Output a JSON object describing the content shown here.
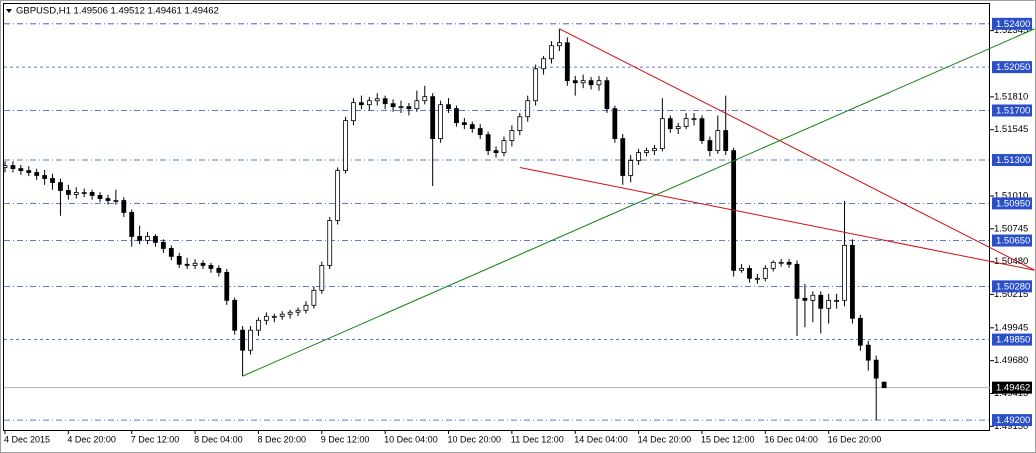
{
  "chart_data": {
    "type": "candlestick",
    "title": "GBPUSD,H1  1.49506 1.49512 1.49461 1.49462",
    "categories": [
      "4 Dec 2015",
      null,
      null,
      null,
      null,
      null,
      null,
      null,
      "4 Dec 20:00",
      null,
      null,
      null,
      null,
      null,
      null,
      null,
      "7 Dec 12:00",
      null,
      null,
      null,
      null,
      null,
      null,
      null,
      "8 Dec 04:00",
      null,
      null,
      null,
      null,
      null,
      null,
      null,
      "8 Dec 20:00",
      null,
      null,
      null,
      null,
      null,
      null,
      null,
      "9 Dec 12:00",
      null,
      null,
      null,
      null,
      null,
      null,
      null,
      "10 Dec 04:00",
      null,
      null,
      null,
      null,
      null,
      null,
      null,
      "10 Dec 20:00",
      null,
      null,
      null,
      null,
      null,
      null,
      null,
      "11 Dec 12:00",
      null,
      null,
      null,
      null,
      null,
      null,
      null,
      "14 Dec 04:00",
      null,
      null,
      null,
      null,
      null,
      null,
      null,
      "14 Dec 20:00",
      null,
      null,
      null,
      null,
      null,
      null,
      null,
      "15 Dec 12:00",
      null,
      null,
      null,
      null,
      null,
      null,
      null,
      "16 Dec 04:00",
      null,
      null,
      null,
      null,
      null,
      null,
      null,
      "16 Dec 20:00",
      null,
      null,
      null,
      null,
      null,
      null,
      null
    ],
    "ohlc": [
      [
        1.5124,
        1.5129,
        1.512,
        1.51255
      ],
      [
        1.51255,
        1.5129,
        1.512,
        1.51231
      ],
      [
        1.51231,
        1.5126,
        1.5118,
        1.51215
      ],
      [
        1.51215,
        1.5125,
        1.5117,
        1.51199
      ],
      [
        1.51199,
        1.5123,
        1.5114,
        1.51175
      ],
      [
        1.51175,
        1.5122,
        1.511,
        1.51151
      ],
      [
        1.51151,
        1.5119,
        1.5106,
        1.51118
      ],
      [
        1.51118,
        1.5115,
        1.5085,
        1.51054
      ],
      [
        1.51054,
        1.511,
        1.5098,
        1.51022
      ],
      [
        1.51022,
        1.5108,
        1.5099,
        1.51038
      ],
      [
        1.51038,
        1.5107,
        1.51,
        1.51038
      ],
      [
        1.51038,
        1.5106,
        1.5098,
        1.51014
      ],
      [
        1.51014,
        1.5104,
        1.5096,
        1.50989
      ],
      [
        1.50989,
        1.5102,
        1.5094,
        1.50973
      ],
      [
        1.50973,
        1.5106,
        1.5094,
        1.50973
      ],
      [
        1.50973,
        1.51,
        1.5084,
        1.50877
      ],
      [
        1.50877,
        1.509,
        1.506,
        1.50683
      ],
      [
        1.50683,
        1.5077,
        1.5062,
        1.50651
      ],
      [
        1.50651,
        1.5072,
        1.5062,
        1.50683
      ],
      [
        1.50683,
        1.507,
        1.506,
        1.50635
      ],
      [
        1.50635,
        1.5066,
        1.5055,
        1.50586
      ],
      [
        1.50586,
        1.5061,
        1.5049,
        1.50522
      ],
      [
        1.50522,
        1.5055,
        1.5043,
        1.50458
      ],
      [
        1.50458,
        1.5051,
        1.5042,
        1.50449
      ],
      [
        1.50449,
        1.505,
        1.5042,
        1.50466
      ],
      [
        1.50466,
        1.5049,
        1.5042,
        1.50449
      ],
      [
        1.50449,
        1.5047,
        1.5039,
        1.50425
      ],
      [
        1.50425,
        1.5045,
        1.5036,
        1.50393
      ],
      [
        1.50393,
        1.5042,
        1.5013,
        1.50167
      ],
      [
        1.50167,
        1.5019,
        1.4989,
        1.49926
      ],
      [
        1.49926,
        1.4996,
        1.49555,
        1.49764
      ],
      [
        1.49764,
        1.4996,
        1.4973,
        1.49926
      ],
      [
        1.49926,
        1.5003,
        1.4988,
        1.50006
      ],
      [
        1.50006,
        1.5007,
        1.4997,
        1.50038
      ],
      [
        1.50038,
        1.5006,
        1.4999,
        1.50038
      ],
      [
        1.50038,
        1.5008,
        1.5001,
        1.50055
      ],
      [
        1.50055,
        1.5009,
        1.5002,
        1.50071
      ],
      [
        1.50071,
        1.5011,
        1.5004,
        1.50087
      ],
      [
        1.50087,
        1.5016,
        1.5006,
        1.50127
      ],
      [
        1.50127,
        1.5028,
        1.501,
        1.50248
      ],
      [
        1.50248,
        1.5048,
        1.5022,
        1.50449
      ],
      [
        1.50449,
        1.5084,
        1.5042,
        1.50812
      ],
      [
        1.50812,
        1.5124,
        1.5078,
        1.51215
      ],
      [
        1.51215,
        1.5165,
        1.5119,
        1.51618
      ],
      [
        1.51618,
        1.518,
        1.5158,
        1.51763
      ],
      [
        1.51763,
        1.5182,
        1.5171,
        1.51747
      ],
      [
        1.51747,
        1.5181,
        1.517,
        1.51779
      ],
      [
        1.51779,
        1.5184,
        1.5174,
        1.51795
      ],
      [
        1.51795,
        1.5182,
        1.5171,
        1.51755
      ],
      [
        1.51755,
        1.5179,
        1.5169,
        1.51731
      ],
      [
        1.51731,
        1.5178,
        1.5168,
        1.51731
      ],
      [
        1.51731,
        1.5176,
        1.5166,
        1.51715
      ],
      [
        1.51715,
        1.5186,
        1.5169,
        1.51779
      ],
      [
        1.51779,
        1.519,
        1.5175,
        1.51812
      ],
      [
        1.51812,
        1.5184,
        1.5109,
        1.51473
      ],
      [
        1.51473,
        1.5178,
        1.5144,
        1.51747
      ],
      [
        1.51747,
        1.518,
        1.5168,
        1.51715
      ],
      [
        1.51715,
        1.5174,
        1.5157,
        1.51602
      ],
      [
        1.51602,
        1.5164,
        1.5155,
        1.51586
      ],
      [
        1.51586,
        1.5161,
        1.5152,
        1.51554
      ],
      [
        1.51554,
        1.5159,
        1.5147,
        1.51505
      ],
      [
        1.51505,
        1.5153,
        1.5134,
        1.51376
      ],
      [
        1.51376,
        1.5141,
        1.5132,
        1.5136
      ],
      [
        1.5136,
        1.5149,
        1.5133,
        1.51457
      ],
      [
        1.51457,
        1.5158,
        1.5141,
        1.51538
      ],
      [
        1.51538,
        1.5168,
        1.515,
        1.5165
      ],
      [
        1.5165,
        1.5182,
        1.5161,
        1.51779
      ],
      [
        1.51779,
        1.5207,
        1.5174,
        1.52037
      ],
      [
        1.52037,
        1.5214,
        1.5199,
        1.52118
      ],
      [
        1.52118,
        1.5226,
        1.5208,
        1.52223
      ],
      [
        1.52223,
        1.5236,
        1.5218,
        1.52247
      ],
      [
        1.52247,
        1.5229,
        1.519,
        1.51941
      ],
      [
        1.51941,
        1.5198,
        1.5182,
        1.51924
      ],
      [
        1.51924,
        1.5199,
        1.5188,
        1.51941
      ],
      [
        1.51941,
        1.5197,
        1.5187,
        1.51908
      ],
      [
        1.51908,
        1.5198,
        1.5186,
        1.51941
      ],
      [
        1.51941,
        1.5197,
        1.5168,
        1.51715
      ],
      [
        1.51715,
        1.5174,
        1.5144,
        1.51473
      ],
      [
        1.51473,
        1.5151,
        1.511,
        1.51175
      ],
      [
        1.51175,
        1.5134,
        1.5112,
        1.51296
      ],
      [
        1.51296,
        1.5139,
        1.5126,
        1.5136
      ],
      [
        1.5136,
        1.514,
        1.5133,
        1.51376
      ],
      [
        1.51376,
        1.5142,
        1.5134,
        1.51392
      ],
      [
        1.51392,
        1.518,
        1.5137,
        1.51634
      ],
      [
        1.51634,
        1.5166,
        1.5152,
        1.51554
      ],
      [
        1.51554,
        1.516,
        1.5151,
        1.5157
      ],
      [
        1.5157,
        1.5168,
        1.5155,
        1.51634
      ],
      [
        1.51634,
        1.5168,
        1.5158,
        1.51634
      ],
      [
        1.51634,
        1.5166,
        1.5143,
        1.51457
      ],
      [
        1.51457,
        1.5149,
        1.5133,
        1.51376
      ],
      [
        1.51376,
        1.5166,
        1.5135,
        1.51538
      ],
      [
        1.51538,
        1.5182,
        1.5134,
        1.51376
      ],
      [
        1.51376,
        1.514,
        1.5036,
        1.50409
      ],
      [
        1.50409,
        1.5046,
        1.5039,
        1.50425
      ],
      [
        1.50425,
        1.5045,
        1.5031,
        1.50345
      ],
      [
        1.50345,
        1.5038,
        1.503,
        1.50345
      ],
      [
        1.50345,
        1.5045,
        1.5032,
        1.50425
      ],
      [
        1.50425,
        1.5049,
        1.504,
        1.50474
      ],
      [
        1.50474,
        1.505,
        1.5044,
        1.50474
      ],
      [
        1.50474,
        1.505,
        1.5043,
        1.50458
      ],
      [
        1.50458,
        1.5049,
        1.4988,
        1.50183
      ],
      [
        1.50183,
        1.503,
        1.4995,
        1.50167
      ],
      [
        1.50167,
        1.5024,
        1.4999,
        1.50208
      ],
      [
        1.50208,
        1.5024,
        1.499,
        1.50103
      ],
      [
        1.50103,
        1.5022,
        1.4998,
        1.50167
      ],
      [
        1.50167,
        1.5022,
        1.501,
        1.50167
      ],
      [
        1.50167,
        1.5097,
        1.5012,
        1.50611
      ],
      [
        1.50611,
        1.5066,
        1.4998,
        1.50022
      ],
      [
        1.50022,
        1.5005,
        1.4976,
        1.49805
      ],
      [
        1.49805,
        1.4984,
        1.496,
        1.49684
      ],
      [
        1.49684,
        1.4972,
        1.492,
        1.49539
      ],
      [
        1.49506,
        1.49512,
        1.49461,
        1.49462
      ]
    ],
    "up_color": "#ffffff",
    "down_color": "#000000",
    "ylim": [
      1.4912,
      1.5256
    ],
    "yticks": [
      1.52345,
      {
        "value": 1.5181,
        "label": "1.51810"
      },
      1.51545,
      {
        "value": 1.5101,
        "label": "1.51010"
      },
      1.50745,
      {
        "value": 1.5048,
        "label": "1.50480"
      },
      1.50215,
      1.49945,
      {
        "value": 1.4968,
        "label": "1.49680"
      },
      1.49415,
      {
        "value": 1.4915,
        "label": "1.49150"
      }
    ],
    "levels_color": "#2a4fc8",
    "levels": [
      {
        "value": 1.524,
        "label": "1.52400",
        "style": "dashdot"
      },
      {
        "value": 1.5205,
        "label": "1.52050",
        "style": "dash"
      },
      {
        "value": 1.517,
        "label": "1.51700",
        "style": "dashdot"
      },
      {
        "value": 1.513,
        "label": "1.51300",
        "style": "dashdot"
      },
      {
        "value": 1.5095,
        "label": "1.50950",
        "style": "dashdot"
      },
      {
        "value": 1.5065,
        "label": "1.50650",
        "style": "dashdot"
      },
      {
        "value": 1.5028,
        "label": "1.50280",
        "style": "dashdot"
      },
      {
        "value": 1.4985,
        "label": "1.49850",
        "style": "dash"
      },
      {
        "value": 1.492,
        "label": "1.49200",
        "style": "dashdot"
      }
    ],
    "current_price": {
      "value": 1.49462,
      "label": "1.49462"
    },
    "trendlines": [
      {
        "color": "#d01010",
        "from": {
          "index": 70,
          "price": 1.5236
        },
        "to": {
          "index": 130,
          "price": 1.5041
        }
      },
      {
        "color": "#d01010",
        "from": {
          "index": 65,
          "price": 1.5124
        },
        "to": {
          "index": 130,
          "price": 1.5041
        }
      },
      {
        "color": "#108010",
        "from": {
          "index": 30,
          "price": 1.49555
        },
        "to": {
          "index": 130,
          "price": 1.5236
        }
      }
    ]
  }
}
